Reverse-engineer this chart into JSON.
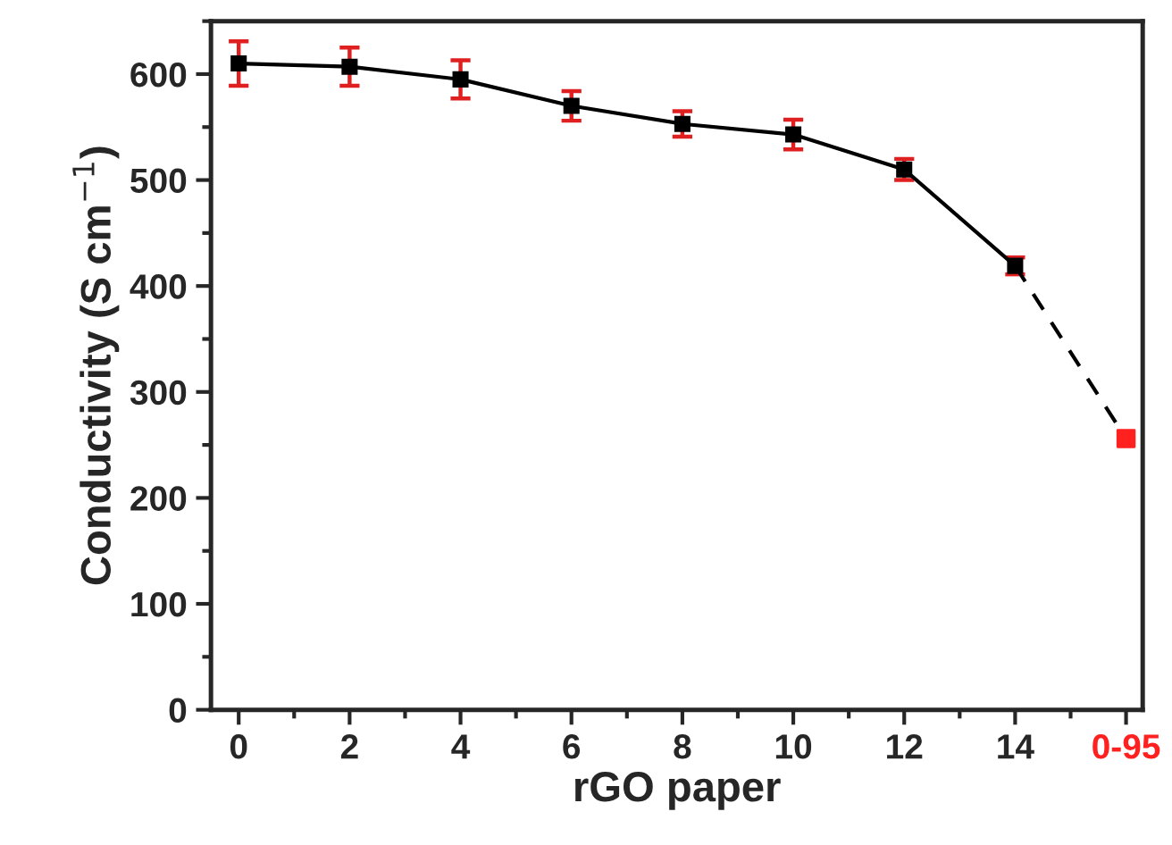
{
  "chart_data": {
    "type": "line",
    "xlabel": "rGO paper",
    "ylabel": "Conductivity (S cm$^{−1}$)",
    "xlim": [
      -0.5,
      16.3
    ],
    "xticks": [
      0,
      2,
      4,
      6,
      8,
      10,
      12,
      14,
      {
        "value": 16,
        "label": "0-95"
      }
    ],
    "ylim": [
      0,
      650
    ],
    "yticks": [
      0,
      100,
      200,
      300,
      400,
      500,
      600
    ],
    "grid": false,
    "legend": false,
    "series": [
      {
        "color": "#000000",
        "marker": "square",
        "line_style": "solid",
        "x": [
          0,
          2,
          4,
          6,
          8,
          10,
          12,
          14
        ],
        "values": [
          610,
          607,
          595,
          570,
          553,
          543,
          510,
          419
        ],
        "errors": [
          21,
          18,
          18,
          14,
          12,
          14,
          10,
          8
        ]
      },
      {
        "color": "#000000",
        "marker": "none",
        "line_style": "dashed",
        "x": [
          14,
          16
        ],
        "values": [
          419,
          256
        ]
      },
      {
        "type": "scatter",
        "color": "#ff2020",
        "marker": "square",
        "x": [
          16
        ],
        "values": [
          256
        ]
      }
    ]
  }
}
